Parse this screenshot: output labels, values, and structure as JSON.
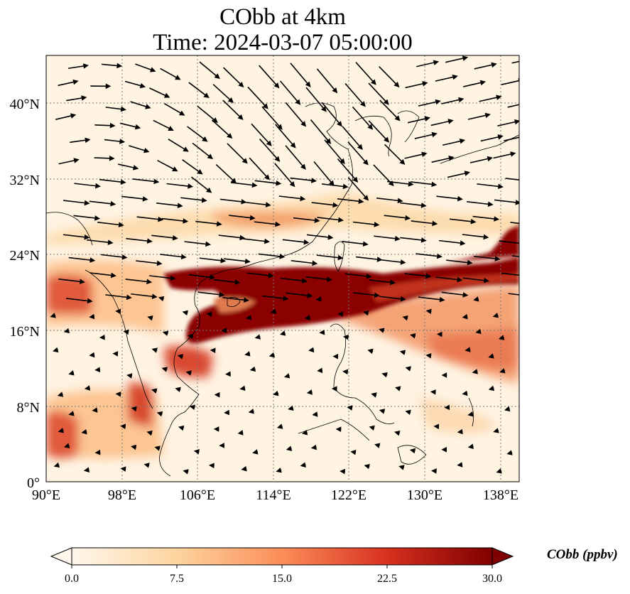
{
  "title": "CObb at 4km",
  "subtitle": "Time: 2024-03-07 05:00:00",
  "map": {
    "lon_range": [
      90,
      140
    ],
    "lat_range": [
      0,
      45
    ],
    "projection": "PlateCarree",
    "gridlines": "dotted",
    "x_ticks": [
      {
        "value": 90,
        "label": "90°E"
      },
      {
        "value": 98,
        "label": "98°E"
      },
      {
        "value": 106,
        "label": "106°E"
      },
      {
        "value": 114,
        "label": "114°E"
      },
      {
        "value": 122,
        "label": "122°E"
      },
      {
        "value": 130,
        "label": "130°E"
      },
      {
        "value": 138,
        "label": "138°E"
      }
    ],
    "y_ticks": [
      {
        "value": 0,
        "label": "0°"
      },
      {
        "value": 8,
        "label": "8°N"
      },
      {
        "value": 16,
        "label": "16°N"
      },
      {
        "value": 24,
        "label": "24°N"
      },
      {
        "value": 32,
        "label": "32°N"
      },
      {
        "value": 40,
        "label": "40°N"
      }
    ],
    "field": "CObb",
    "wind_vectors": "quiver arrows"
  },
  "colorbar": {
    "label": "CObb (ppbv)",
    "colormap": "OrRd",
    "range": [
      0,
      30
    ],
    "extend": "both",
    "ticks": [
      {
        "value": 0,
        "label": "0.0"
      },
      {
        "value": 7.5,
        "label": "7.5"
      },
      {
        "value": 15,
        "label": "15.0"
      },
      {
        "value": 22.5,
        "label": "22.5"
      },
      {
        "value": 30,
        "label": "30.0"
      }
    ],
    "colors": [
      "#fff7ec",
      "#fdd49e",
      "#fc8d59",
      "#d7301f",
      "#7f0000"
    ]
  }
}
